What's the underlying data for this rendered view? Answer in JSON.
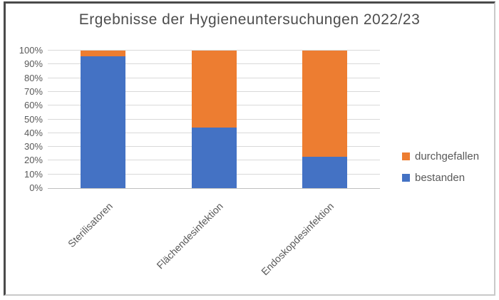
{
  "chart_data": {
    "type": "bar",
    "stacked": true,
    "orientation": "vertical",
    "title": "Ergebnisse der Hygieneuntersuchungen 2022/23",
    "categories": [
      "Sterilisatoren",
      "Flächendesinfektion",
      "Endoskopdesinfektion"
    ],
    "series": [
      {
        "name": "durchgefallen",
        "color": "#ED7D31",
        "values": [
          4,
          56,
          77
        ]
      },
      {
        "name": "bestanden",
        "color": "#4472C4",
        "values": [
          96,
          44,
          23
        ]
      }
    ],
    "y_axis": {
      "min": 0,
      "max": 100,
      "tick_step": 10,
      "ticks": [
        "0%",
        "10%",
        "20%",
        "30%",
        "40%",
        "50%",
        "60%",
        "70%",
        "80%",
        "90%",
        "100%"
      ]
    },
    "xlabel": "",
    "ylabel": "",
    "grid": true,
    "gridline_color": "#D9D9D9",
    "text_color": "#595959",
    "legend_position": "right",
    "x_label_rotation_deg": 45
  }
}
